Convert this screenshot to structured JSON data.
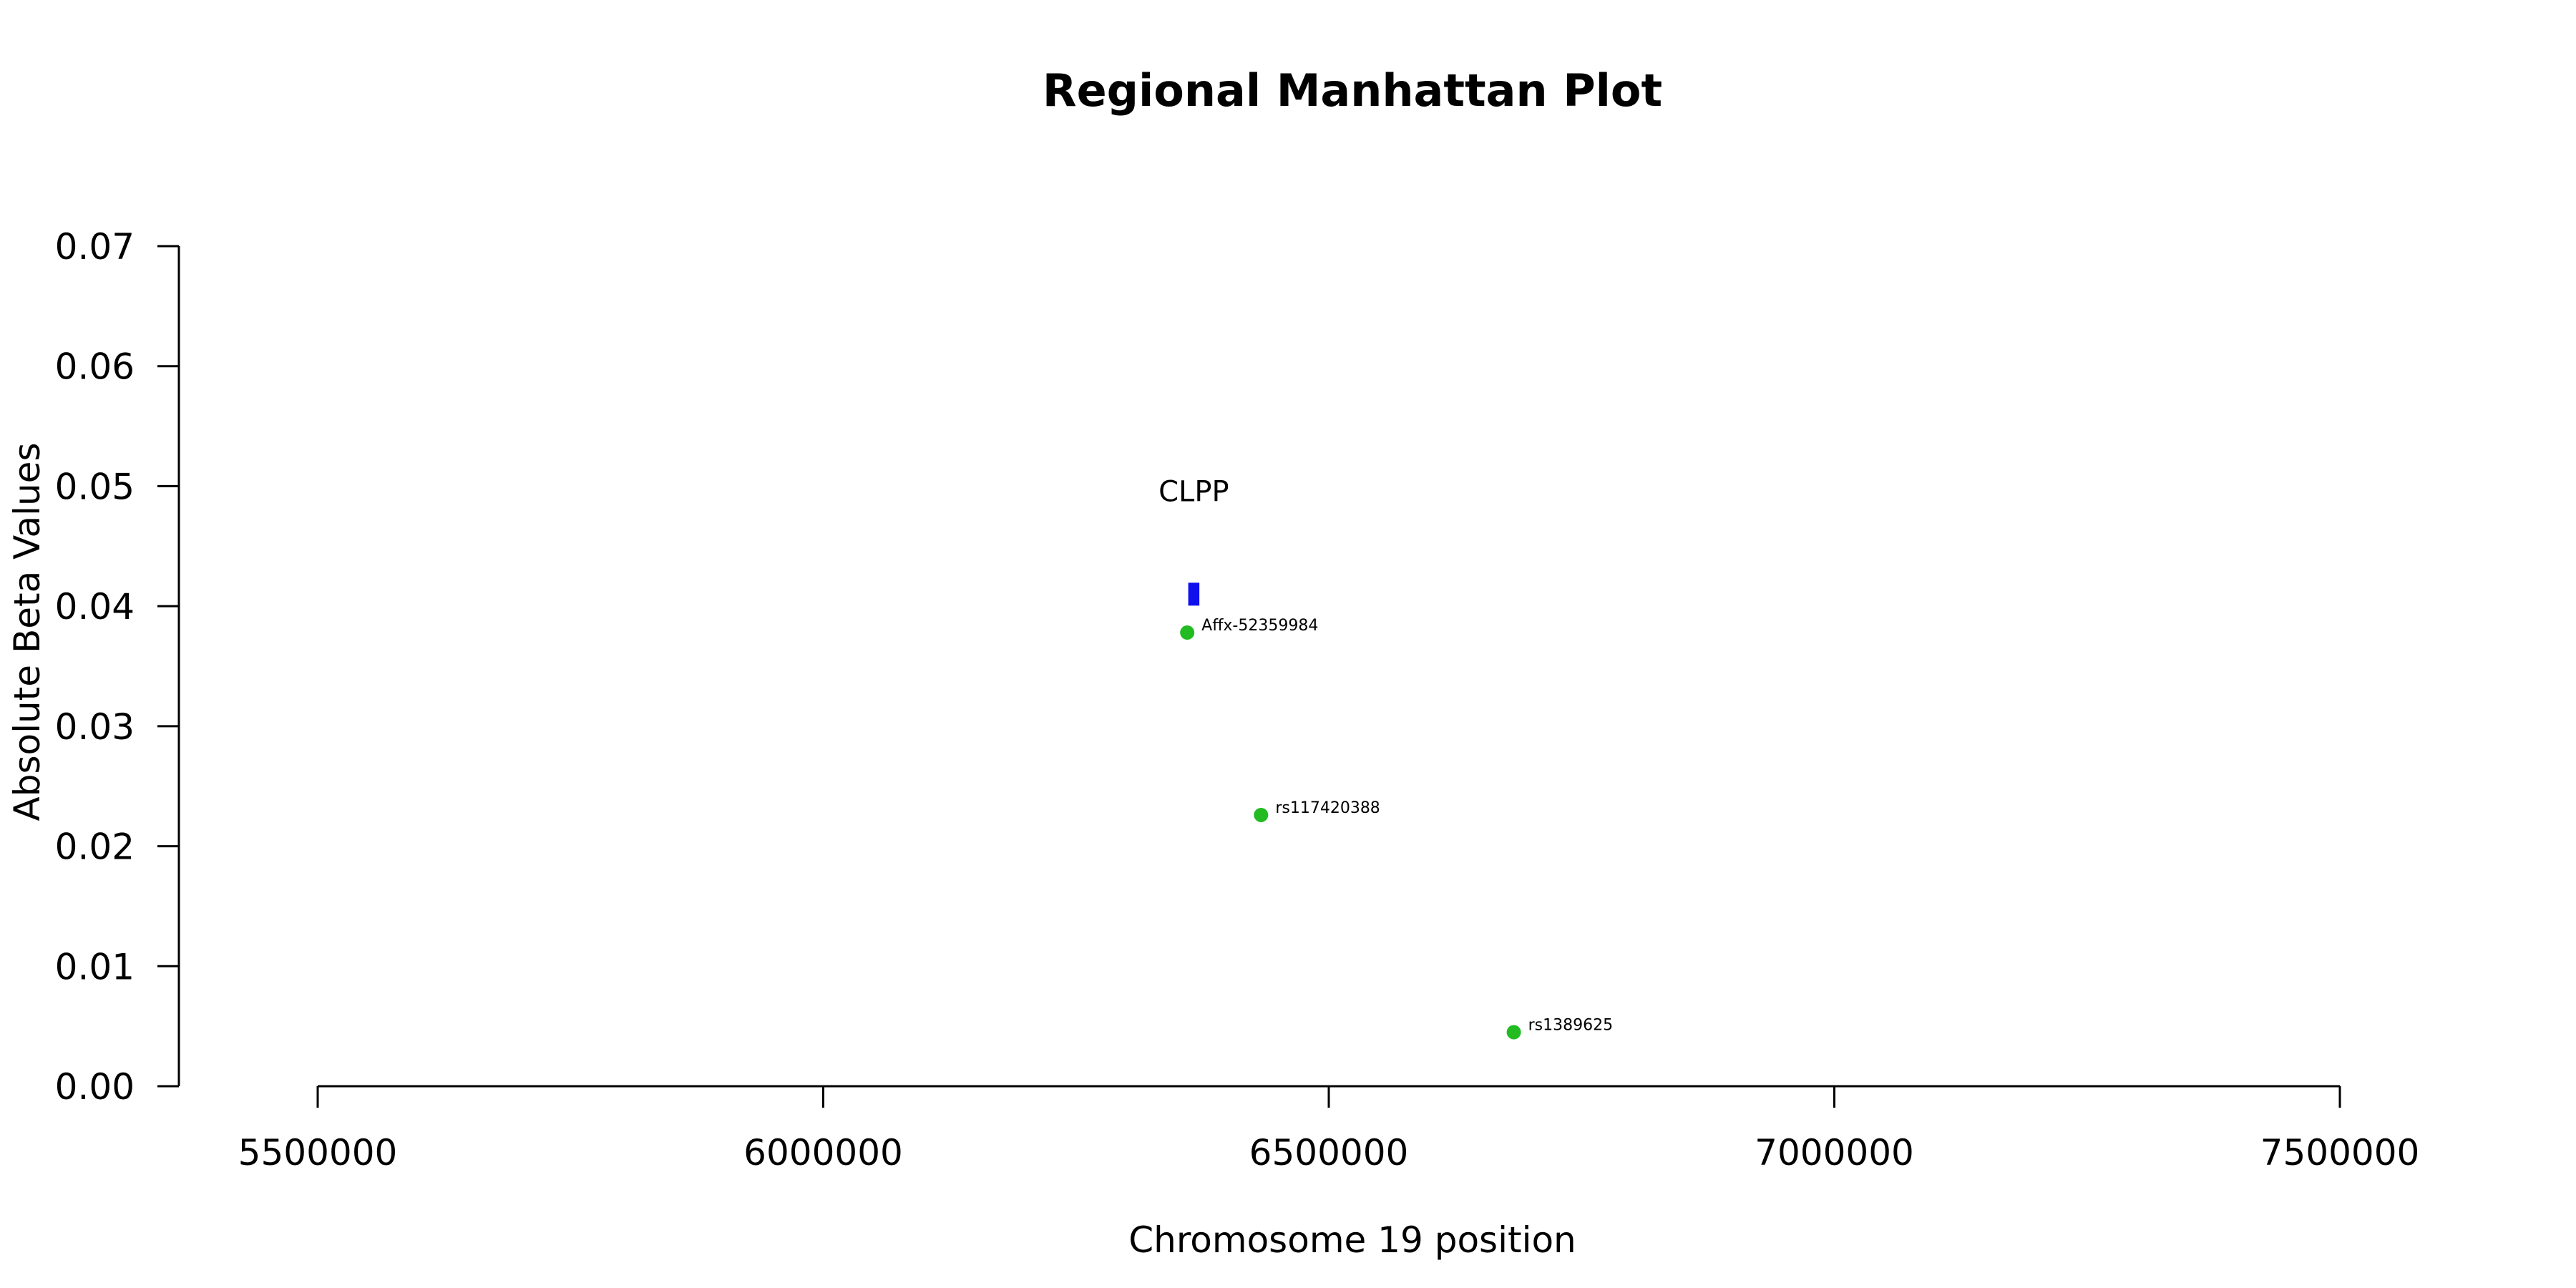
{
  "chart_data": {
    "type": "scatter",
    "title": "Regional Manhattan Plot",
    "xlabel": "Chromosome 19 position",
    "ylabel": "Absolute Beta Values",
    "xlim": [
      5500000,
      7500000
    ],
    "ylim": [
      0,
      0.07
    ],
    "x_ticks": [
      5500000,
      6000000,
      6500000,
      7000000,
      7500000
    ],
    "x_tick_labels": [
      "5500000",
      "6000000",
      "6500000",
      "7000000",
      "7500000"
    ],
    "y_ticks": [
      0,
      0.01,
      0.02,
      0.03,
      0.04,
      0.05,
      0.06,
      0.07
    ],
    "y_tick_labels": [
      "0.00",
      "0.01",
      "0.02",
      "0.03",
      "0.04",
      "0.05",
      "0.06",
      "0.07"
    ],
    "grid": false,
    "point_color": "#22bb22",
    "points": [
      {
        "label": "Affx-52359984",
        "x": 6360000,
        "y": 0.0378
      },
      {
        "label": "rs117420388",
        "x": 6433000,
        "y": 0.0226
      },
      {
        "label": "rs1389625",
        "x": 6683000,
        "y": 0.0045
      }
    ],
    "gene": {
      "label": "CLPP",
      "color": "#1010ee",
      "x_start": 6361000,
      "x_end": 6372000,
      "y": 0.041
    }
  }
}
